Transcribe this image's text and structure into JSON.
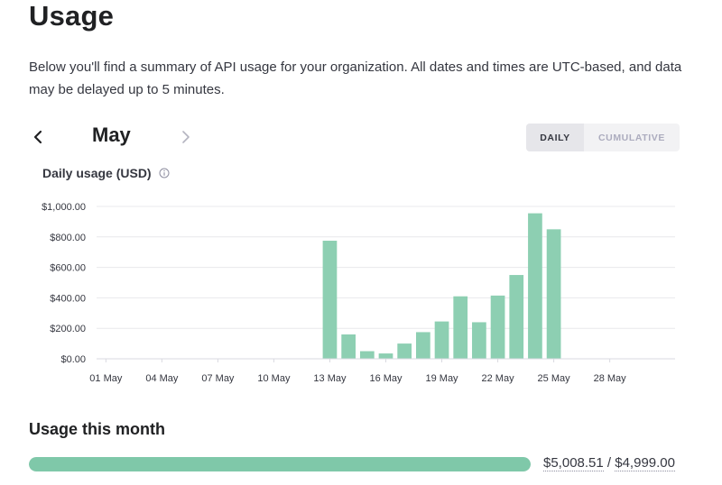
{
  "page": {
    "title": "Usage",
    "description": "Below you'll find a summary of API usage for your organization. All dates and times are UTC-based, and data may be delayed up to 5 minutes."
  },
  "month_nav": {
    "month": "May",
    "prev_icon": "chevron-left-icon",
    "next_icon": "chevron-right-icon"
  },
  "view_toggle": {
    "options": [
      "DAILY",
      "CUMULATIVE"
    ],
    "selected": "DAILY"
  },
  "chart_heading": "Daily usage (USD)",
  "chart_data": {
    "type": "bar",
    "title": "Daily usage (USD)",
    "xlabel": "",
    "ylabel": "",
    "ylim": [
      0,
      1000
    ],
    "yticks": [
      "$0.00",
      "$200.00",
      "$400.00",
      "$600.00",
      "$800.00",
      "$1,000.00"
    ],
    "xtick_labels": [
      "01 May",
      "04 May",
      "07 May",
      "10 May",
      "13 May",
      "16 May",
      "19 May",
      "22 May",
      "25 May",
      "28 May"
    ],
    "grid": true,
    "bar_color": "#8dcfb2",
    "categories": [
      "01 May",
      "02 May",
      "03 May",
      "04 May",
      "05 May",
      "06 May",
      "07 May",
      "08 May",
      "09 May",
      "10 May",
      "11 May",
      "12 May",
      "13 May",
      "14 May",
      "15 May",
      "16 May",
      "17 May",
      "18 May",
      "19 May",
      "20 May",
      "21 May",
      "22 May",
      "23 May",
      "24 May",
      "25 May",
      "26 May",
      "27 May",
      "28 May",
      "29 May",
      "30 May",
      "31 May"
    ],
    "values": [
      1,
      1,
      1,
      1,
      1,
      1,
      1,
      1,
      2,
      2,
      2,
      3,
      775,
      160,
      50,
      35,
      100,
      175,
      245,
      410,
      240,
      415,
      550,
      955,
      850,
      0,
      0,
      0,
      0,
      0,
      0
    ]
  },
  "usage_month": {
    "heading": "Usage this month",
    "spent": "$5,008.51",
    "separator": "/",
    "limit": "$4,999.00",
    "fraction": 1.0,
    "bar_color": "#7fc8a9"
  }
}
